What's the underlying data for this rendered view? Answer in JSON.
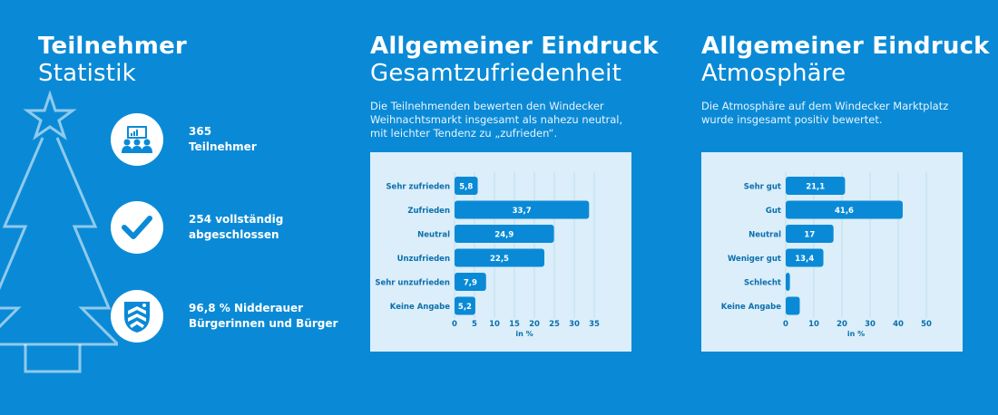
{
  "left": {
    "title_bold": "Teilnehmer",
    "title_light": "Statistik",
    "stats": [
      {
        "line1": "365",
        "line2": "Teilnehmer",
        "icon": "participants-icon"
      },
      {
        "line1": "254 vollständig",
        "line2": "abgeschlossen",
        "icon": "checkmark-icon"
      },
      {
        "line1": "96,8 % Nidderauer",
        "line2": "Bürgerinnen und Bürger",
        "icon": "coat-of-arms-icon"
      }
    ]
  },
  "middle": {
    "title_bold": "Allgemeiner Eindruck",
    "title_light": "Gesamtzufriedenheit",
    "desc_lines": [
      "Die Teilnehmenden bewerten den Windecker",
      "Weihnachtsmarkt insgesamt als nahezu neutral,",
      "mit leichter Tendenz zu „zufrieden“."
    ]
  },
  "right": {
    "title_bold": "Allgemeiner Eindruck",
    "title_light": "Atmosphäre",
    "desc_lines": [
      "Die Atmosphäre auf dem Windecker Marktplatz",
      "wurde insgesamt positiv bewertet."
    ]
  },
  "colors": {
    "background": "#0a8ad6",
    "bar": "#0a8ad6",
    "chart_bg": "#dbeef9",
    "axis_text": "#0a6fae"
  },
  "chart_data": [
    {
      "type": "bar",
      "orientation": "horizontal",
      "categories": [
        "Sehr zufrieden",
        "Zufrieden",
        "Neutral",
        "Unzufrieden",
        "Sehr unzufrieden",
        "Keine Angabe"
      ],
      "values": [
        5.8,
        33.7,
        24.9,
        22.5,
        7.9,
        5.2
      ],
      "value_labels": [
        "5,8",
        "33,7",
        "24,9",
        "22,5",
        "7,9",
        "5,2"
      ],
      "xlabel": "in %",
      "xlim": [
        0,
        35
      ],
      "xticks": [
        0,
        5,
        10,
        15,
        20,
        25,
        30,
        35
      ]
    },
    {
      "type": "bar",
      "orientation": "horizontal",
      "categories": [
        "Sehr gut",
        "Gut",
        "Neutral",
        "Weniger gut",
        "Schlecht",
        "Keine Angabe"
      ],
      "values": [
        21.1,
        41.6,
        17,
        13.4,
        1.5,
        5
      ],
      "value_labels": [
        "21,1",
        "41,6",
        "17",
        "13,4",
        "",
        ""
      ],
      "xlabel": "in %",
      "xlim": [
        0,
        50
      ],
      "xticks": [
        0,
        10,
        20,
        30,
        40,
        50
      ]
    }
  ]
}
